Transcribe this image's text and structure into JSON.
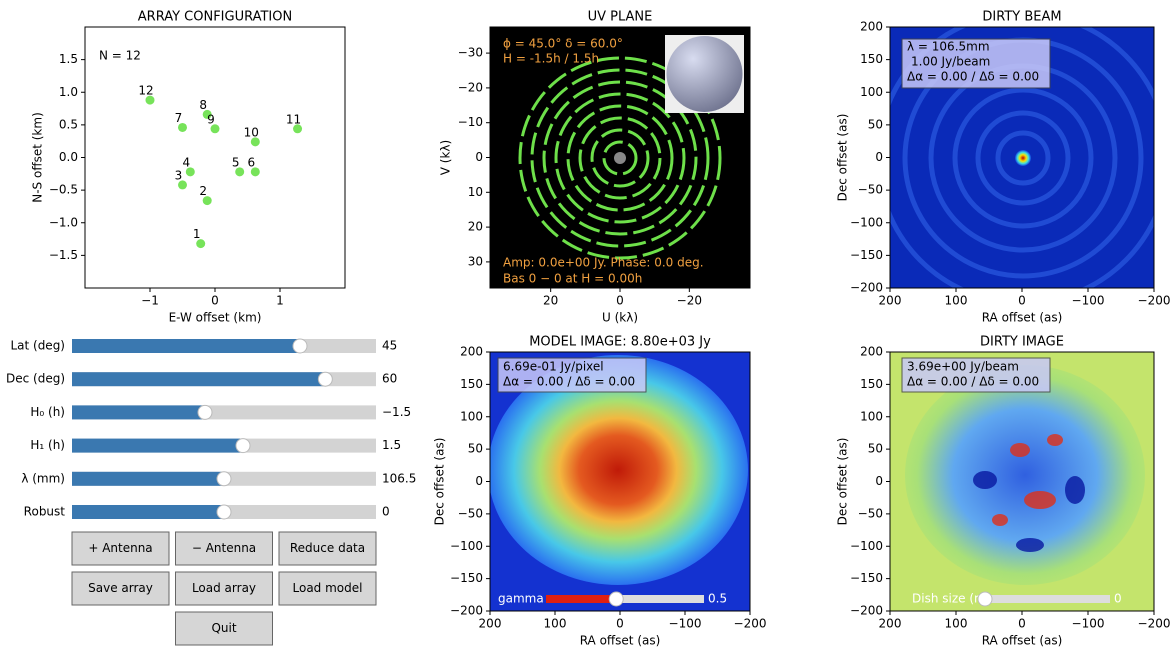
{
  "array_plot": {
    "title": "ARRAY CONFIGURATION",
    "xlabel": "E-W offset (km)",
    "ylabel": "N-S offset (km)",
    "note": "N = 12",
    "xlim": [
      -2,
      2
    ],
    "ylim": [
      -2,
      2
    ],
    "xticks": [
      {
        "value": -1,
        "label": "−1"
      },
      0,
      1
    ],
    "yticks": [
      {
        "value": -1.5,
        "label": "−1.5"
      },
      {
        "value": -1,
        "label": "−1.0"
      },
      {
        "value": -0.5,
        "label": "−0.5"
      },
      {
        "value": 0,
        "label": "0.0"
      },
      0.5,
      {
        "value": 1,
        "label": "1.0"
      },
      1.5
    ],
    "color": "#77e35a",
    "antennas": {
      "labels": [
        "1",
        "2",
        "3",
        "4",
        "5",
        "6",
        "7",
        "8",
        "9",
        "10",
        "11",
        "12"
      ],
      "x": [
        -0.22,
        -0.12,
        -0.5,
        -0.38,
        0.38,
        0.62,
        -0.5,
        -0.12,
        0.0,
        0.62,
        1.27,
        -1.0
      ],
      "y": [
        -1.32,
        -0.66,
        -0.42,
        -0.22,
        -0.22,
        -0.22,
        0.46,
        0.66,
        0.44,
        0.24,
        0.44,
        0.88
      ]
    }
  },
  "uv_plot": {
    "title": "UV PLANE",
    "xlabel": "U (kλ)",
    "ylabel": "V (kλ)",
    "xlim": [
      37.5,
      -37.5
    ],
    "ylim": [
      37.5,
      -37.5
    ],
    "xticks": [
      20,
      0,
      {
        "value": -20,
        "label": "−20"
      }
    ],
    "yticks": [
      {
        "value": -30,
        "label": "−30"
      },
      {
        "value": -20,
        "label": "−20"
      },
      {
        "value": -10,
        "label": "−10"
      },
      0,
      10,
      20,
      30
    ],
    "annotations": [
      "ϕ = 45.0°   δ = 60.0°",
      "H = -1.5h / 1.5h",
      "Amp: 0.0e+00 Jy.   Phase:   0.0 deg.",
      "Bas 0 − 0  at  H = 0.00h"
    ]
  },
  "beam_plot": {
    "title": "DIRTY BEAM",
    "xlabel": "RA offset (as)",
    "ylabel": "Dec offset (as)",
    "xlim": [
      200,
      -200
    ],
    "ylim": [
      -200,
      200
    ],
    "xticks": [
      200,
      100,
      0,
      {
        "value": -100,
        "label": "−100"
      },
      {
        "value": -200,
        "label": "−200"
      }
    ],
    "yticks": [
      {
        "value": -200,
        "label": "−200"
      },
      {
        "value": -150,
        "label": "−150"
      },
      {
        "value": -100,
        "label": "−100"
      },
      {
        "value": -50,
        "label": "−50"
      },
      0,
      50,
      100,
      150,
      200
    ],
    "annotations": [
      "λ = 106.5mm",
      "1.00 Jy/beam",
      "Δα =  0.00 / Δδ =  0.00"
    ]
  },
  "model_plot": {
    "title": "MODEL IMAGE: 8.80e+03 Jy",
    "xlabel": "RA offset (as)",
    "ylabel": "Dec offset (as)",
    "xlim": [
      200,
      -200
    ],
    "ylim": [
      -200,
      200
    ],
    "xticks": [
      200,
      100,
      0,
      {
        "value": -100,
        "label": "−100"
      },
      {
        "value": -200,
        "label": "−200"
      }
    ],
    "yticks": [
      {
        "value": -200,
        "label": "−200"
      },
      {
        "value": -150,
        "label": "−150"
      },
      {
        "value": -100,
        "label": "−100"
      },
      {
        "value": -50,
        "label": "−50"
      },
      0,
      50,
      100,
      150,
      200
    ],
    "annotations": [
      "6.69e-01 Jy/pixel",
      "Δα =  0.00 / Δδ =  0.00"
    ],
    "slider": {
      "label": "gamma",
      "value": 0.5,
      "min": 0.1,
      "max": 1
    }
  },
  "dirty_plot": {
    "title": "DIRTY IMAGE",
    "xlabel": "RA offset (as)",
    "ylabel": "Dec offset (as)",
    "xlim": [
      200,
      -200
    ],
    "ylim": [
      -200,
      200
    ],
    "xticks": [
      200,
      100,
      0,
      {
        "value": -100,
        "label": "−100"
      },
      {
        "value": -200,
        "label": "−200"
      }
    ],
    "yticks": [
      {
        "value": -200,
        "label": "−200"
      },
      {
        "value": -150,
        "label": "−150"
      },
      {
        "value": -100,
        "label": "−100"
      },
      {
        "value": -50,
        "label": "−50"
      },
      0,
      50,
      100,
      150,
      200
    ],
    "annotations": [
      "3.69e+00 Jy/beam",
      "Δα =  0.00 / Δδ =  0.00"
    ],
    "slider": {
      "label": "Dish size (m)",
      "value": 0,
      "min": 0,
      "max": 100
    }
  },
  "sliders": [
    {
      "label": "Lat (deg)",
      "value": 45,
      "min": -90,
      "max": 90
    },
    {
      "label": "Dec (deg)",
      "value": 60,
      "min": -90,
      "max": 90
    },
    {
      "label": "H₀ (h)",
      "value": {
        "value": -1.5,
        "label": "−1.5"
      },
      "min": -12,
      "max": 12
    },
    {
      "label": "H₁ (h)",
      "value": 1.5,
      "min": -12,
      "max": 12
    },
    {
      "label": "λ (mm)",
      "value": 106.5,
      "min": 3,
      "max": 210
    },
    {
      "label": "Robust",
      "value": 0,
      "min": -2,
      "max": 2
    }
  ],
  "buttons": [
    "+ Antenna",
    "− Antenna",
    "Reduce data",
    "Save array",
    "Load array",
    "Load model",
    "Quit"
  ]
}
